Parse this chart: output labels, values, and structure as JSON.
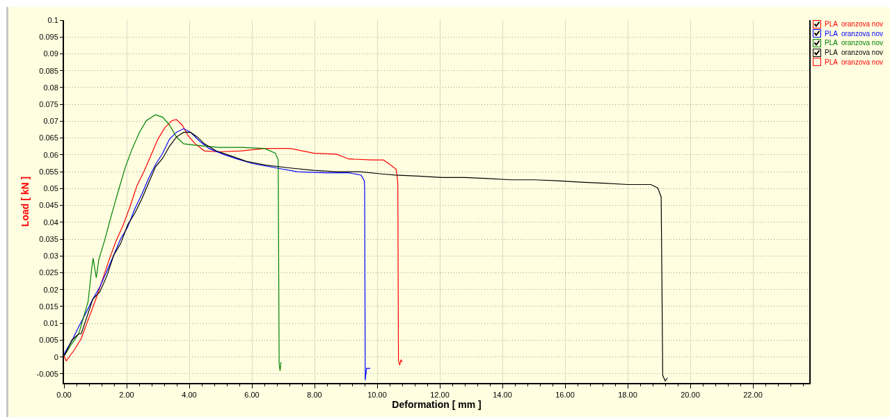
{
  "chart_data": {
    "type": "line",
    "xlabel": "Deformation [ mm ]",
    "ylabel": "Load [ kN ]",
    "xlim": [
      0,
      23.8
    ],
    "ylim": [
      -0.0077,
      0.1
    ],
    "xticks": [
      {
        "value": 0,
        "label": "0.00"
      },
      {
        "value": 0.4,
        "label": null
      },
      {
        "value": 0.8,
        "label": null
      },
      {
        "value": 1.2,
        "label": null
      },
      {
        "value": 1.6,
        "label": null
      },
      {
        "value": 2,
        "label": "2.00"
      },
      {
        "value": 2.4,
        "label": null
      },
      {
        "value": 2.8,
        "label": null
      },
      {
        "value": 3.2,
        "label": null
      },
      {
        "value": 3.6,
        "label": null
      },
      {
        "value": 4,
        "label": "4.00"
      },
      {
        "value": 4.4,
        "label": null
      },
      {
        "value": 4.8,
        "label": null
      },
      {
        "value": 5.2,
        "label": null
      },
      {
        "value": 5.6,
        "label": null
      },
      {
        "value": 6,
        "label": "6.00"
      },
      {
        "value": 6.4,
        "label": null
      },
      {
        "value": 6.8,
        "label": null
      },
      {
        "value": 7.2,
        "label": null
      },
      {
        "value": 7.6,
        "label": null
      },
      {
        "value": 8,
        "label": "8.00"
      },
      {
        "value": 8.4,
        "label": null
      },
      {
        "value": 8.8,
        "label": null
      },
      {
        "value": 9.2,
        "label": null
      },
      {
        "value": 9.6,
        "label": null
      },
      {
        "value": 10,
        "label": "10.00"
      },
      {
        "value": 10.4,
        "label": null
      },
      {
        "value": 10.8,
        "label": null
      },
      {
        "value": 11.2,
        "label": null
      },
      {
        "value": 11.6,
        "label": null
      },
      {
        "value": 12,
        "label": "12.00"
      },
      {
        "value": 12.4,
        "label": null
      },
      {
        "value": 12.8,
        "label": null
      },
      {
        "value": 13.2,
        "label": null
      },
      {
        "value": 13.6,
        "label": null
      },
      {
        "value": 14,
        "label": "14.00"
      },
      {
        "value": 14.4,
        "label": null
      },
      {
        "value": 14.8,
        "label": null
      },
      {
        "value": 15.2,
        "label": null
      },
      {
        "value": 15.6,
        "label": null
      },
      {
        "value": 16,
        "label": "16.00"
      },
      {
        "value": 16.4,
        "label": null
      },
      {
        "value": 16.8,
        "label": null
      },
      {
        "value": 17.2,
        "label": null
      },
      {
        "value": 17.6,
        "label": null
      },
      {
        "value": 18,
        "label": "18.00"
      },
      {
        "value": 18.4,
        "label": null
      },
      {
        "value": 18.8,
        "label": null
      },
      {
        "value": 19.2,
        "label": null
      },
      {
        "value": 19.6,
        "label": null
      },
      {
        "value": 20,
        "label": "20.00"
      },
      {
        "value": 20.4,
        "label": null
      },
      {
        "value": 20.8,
        "label": null
      },
      {
        "value": 21.2,
        "label": null
      },
      {
        "value": 21.6,
        "label": null
      },
      {
        "value": 22,
        "label": "22.00"
      },
      {
        "value": 22.4,
        "label": null
      },
      {
        "value": 22.8,
        "label": null
      },
      {
        "value": 23.2,
        "label": null
      },
      {
        "value": 23.6,
        "label": null
      }
    ],
    "yticks": [
      -0.005,
      0,
      0.005,
      0.01,
      0.015,
      0.02,
      0.025,
      0.03,
      0.035,
      0.04,
      0.045,
      0.05,
      0.055,
      0.06,
      0.065,
      0.07,
      0.075,
      0.08,
      0.085,
      0.09,
      0.095,
      0.1
    ],
    "grid": true,
    "legend": "top right",
    "series": [
      {
        "name": "PLA  oranzova nov",
        "color": "#ff0000",
        "x": [
          0,
          0.07,
          0.2,
          0.33,
          0.55,
          0.77,
          0.99,
          1.22,
          1.44,
          1.66,
          1.89,
          2.11,
          2.33,
          2.55,
          2.78,
          3.0,
          3.22,
          3.45,
          3.59,
          3.78,
          3.96,
          4.19,
          4.48,
          4.93,
          5.67,
          6.41,
          7.23,
          7.97,
          8.71,
          9.09,
          9.83,
          10.2,
          10.42,
          10.61,
          10.66,
          10.68,
          10.72,
          10.76,
          10.8
        ],
        "values": [
          0.0005,
          -0.0012,
          0.0005,
          0.0021,
          0.0055,
          0.011,
          0.0165,
          0.0227,
          0.0289,
          0.0344,
          0.0392,
          0.0447,
          0.0509,
          0.055,
          0.0599,
          0.0647,
          0.0681,
          0.0702,
          0.0705,
          0.0688,
          0.0657,
          0.0633,
          0.0612,
          0.0609,
          0.0612,
          0.0619,
          0.0619,
          0.0605,
          0.0602,
          0.0588,
          0.0585,
          0.0585,
          0.0571,
          0.0557,
          0.0516,
          -0.001,
          -0.0024,
          -0.0008,
          -0.0015
        ]
      },
      {
        "name": "PLA  oranzova nov",
        "color": "#0000ff",
        "x": [
          0,
          0.03,
          0.25,
          0.47,
          0.7,
          0.92,
          1.14,
          1.37,
          1.59,
          1.81,
          2.03,
          2.26,
          2.48,
          2.7,
          2.92,
          3.15,
          3.37,
          3.59,
          3.82,
          4.04,
          4.34,
          4.63,
          5.08,
          5.52,
          6.04,
          6.79,
          7.45,
          8.34,
          9.09,
          9.49,
          9.59,
          9.6,
          9.62,
          9.66,
          9.78
        ],
        "values": [
          0.0005,
          0.0014,
          0.0048,
          0.009,
          0.0131,
          0.0172,
          0.0207,
          0.0255,
          0.0303,
          0.0351,
          0.0385,
          0.044,
          0.0482,
          0.053,
          0.0571,
          0.0605,
          0.0647,
          0.0667,
          0.0678,
          0.0667,
          0.064,
          0.0619,
          0.0602,
          0.0588,
          0.0574,
          0.0561,
          0.055,
          0.0547,
          0.0547,
          0.054,
          0.0523,
          0.0502,
          -0.0069,
          -0.0034,
          -0.0034
        ]
      },
      {
        "name": "PLA  oranzova nov",
        "color": "#008000",
        "x": [
          0,
          0.03,
          0.25,
          0.47,
          0.62,
          0.77,
          0.88,
          0.93,
          1.03,
          1.11,
          1.29,
          1.51,
          1.74,
          1.96,
          2.18,
          2.41,
          2.63,
          2.92,
          3.15,
          3.37,
          3.59,
          3.82,
          4.19,
          4.93,
          5.67,
          6.41,
          6.75,
          6.84,
          6.87,
          6.9,
          6.93
        ],
        "values": [
          0.0005,
          0.0007,
          0.004,
          0.0069,
          0.0117,
          0.0165,
          0.026,
          0.0293,
          0.0235,
          0.0289,
          0.0344,
          0.042,
          0.0495,
          0.0564,
          0.0619,
          0.0667,
          0.0702,
          0.0719,
          0.0712,
          0.0688,
          0.0653,
          0.0633,
          0.0629,
          0.0622,
          0.0622,
          0.0619,
          0.0605,
          0.0585,
          -0.002,
          -0.0041,
          -0.0015
        ]
      },
      {
        "name": "PLA  oranzova nov",
        "color": "#000000",
        "x": [
          0,
          0.03,
          0.25,
          0.47,
          0.55,
          0.7,
          0.92,
          1.14,
          1.37,
          1.59,
          1.81,
          2.03,
          2.26,
          2.48,
          2.7,
          2.92,
          3.15,
          3.37,
          3.59,
          3.82,
          4.04,
          4.26,
          4.48,
          4.86,
          5.3,
          5.82,
          6.41,
          7.23,
          7.97,
          8.71,
          9.46,
          10.2,
          10.57,
          11.31,
          12.06,
          12.8,
          13.54,
          14.28,
          15.03,
          15.77,
          16.51,
          17.25,
          18.0,
          18.74,
          18.96,
          19.07,
          19.12,
          19.2,
          19.27
        ],
        "values": [
          0.0005,
          0.0007,
          0.005,
          0.0069,
          0.0069,
          0.011,
          0.0172,
          0.0193,
          0.0241,
          0.0303,
          0.0337,
          0.0392,
          0.0427,
          0.0468,
          0.0516,
          0.0564,
          0.059,
          0.0626,
          0.0653,
          0.0667,
          0.0667,
          0.0653,
          0.0633,
          0.0612,
          0.0598,
          0.0581,
          0.057,
          0.0561,
          0.0554,
          0.055,
          0.055,
          0.0543,
          0.054,
          0.0537,
          0.0533,
          0.0533,
          0.053,
          0.0526,
          0.0526,
          0.0523,
          0.0519,
          0.0516,
          0.0512,
          0.0512,
          0.0502,
          0.0475,
          -0.0055,
          -0.0071,
          -0.0062
        ]
      },
      {
        "name": "PLA  oranzova nov",
        "color": "#ff0000"
      }
    ]
  }
}
